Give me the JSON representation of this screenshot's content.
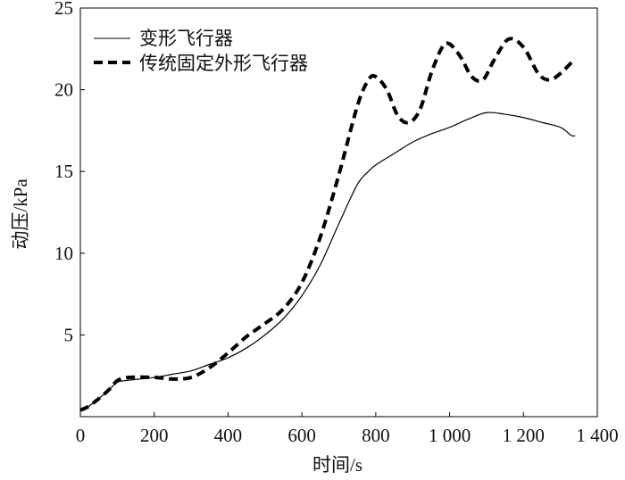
{
  "chart_data": {
    "type": "line",
    "title": "",
    "xlabel": "时间/s",
    "ylabel": "动压/kPa",
    "xlim": [
      0,
      1400
    ],
    "ylim": [
      0,
      25
    ],
    "xticks": [
      0,
      200,
      400,
      600,
      800,
      1000,
      1200,
      1400
    ],
    "xtick_labels": [
      "0",
      "200",
      "400",
      "600",
      "800",
      "1 000",
      "1 200",
      "1 400"
    ],
    "yticks": [
      5,
      10,
      15,
      20,
      25
    ],
    "ytick_labels": [
      "5",
      "10",
      "15",
      "20",
      "25"
    ],
    "grid": false,
    "legend_position": "top-left",
    "series": [
      {
        "name": "变形飞行器",
        "style": "solid",
        "color": "#000000",
        "x": [
          0,
          20,
          50,
          80,
          100,
          120,
          200,
          250,
          300,
          350,
          400,
          450,
          500,
          550,
          600,
          650,
          700,
          750,
          780,
          800,
          850,
          900,
          950,
          1000,
          1050,
          1100,
          1150,
          1200,
          1250,
          1300,
          1330,
          1340
        ],
        "y": [
          0.4,
          0.6,
          1.1,
          1.7,
          2.1,
          2.2,
          2.4,
          2.6,
          2.8,
          3.2,
          3.6,
          4.2,
          5.0,
          6.0,
          7.4,
          9.3,
          11.8,
          14.2,
          15.0,
          15.4,
          16.1,
          16.8,
          17.3,
          17.7,
          18.2,
          18.6,
          18.5,
          18.3,
          18.0,
          17.7,
          17.2,
          17.2
        ]
      },
      {
        "name": "传统固定外形飞行器",
        "style": "dashed",
        "color": "#000000",
        "x": [
          0,
          20,
          50,
          80,
          100,
          130,
          200,
          250,
          300,
          350,
          400,
          450,
          500,
          550,
          600,
          650,
          700,
          750,
          780,
          800,
          830,
          860,
          890,
          920,
          950,
          980,
          1000,
          1030,
          1060,
          1090,
          1120,
          1160,
          1200,
          1240,
          1270,
          1300,
          1340
        ],
        "y": [
          0.4,
          0.6,
          1.1,
          1.7,
          2.2,
          2.4,
          2.4,
          2.3,
          2.4,
          3.0,
          3.9,
          4.9,
          5.7,
          6.6,
          8.2,
          11.0,
          14.8,
          19.0,
          20.6,
          20.8,
          20.0,
          18.4,
          18.0,
          18.8,
          21.0,
          22.6,
          22.8,
          22.0,
          20.8,
          20.6,
          21.8,
          23.1,
          22.6,
          21.0,
          20.6,
          21.0,
          21.9
        ]
      }
    ]
  }
}
